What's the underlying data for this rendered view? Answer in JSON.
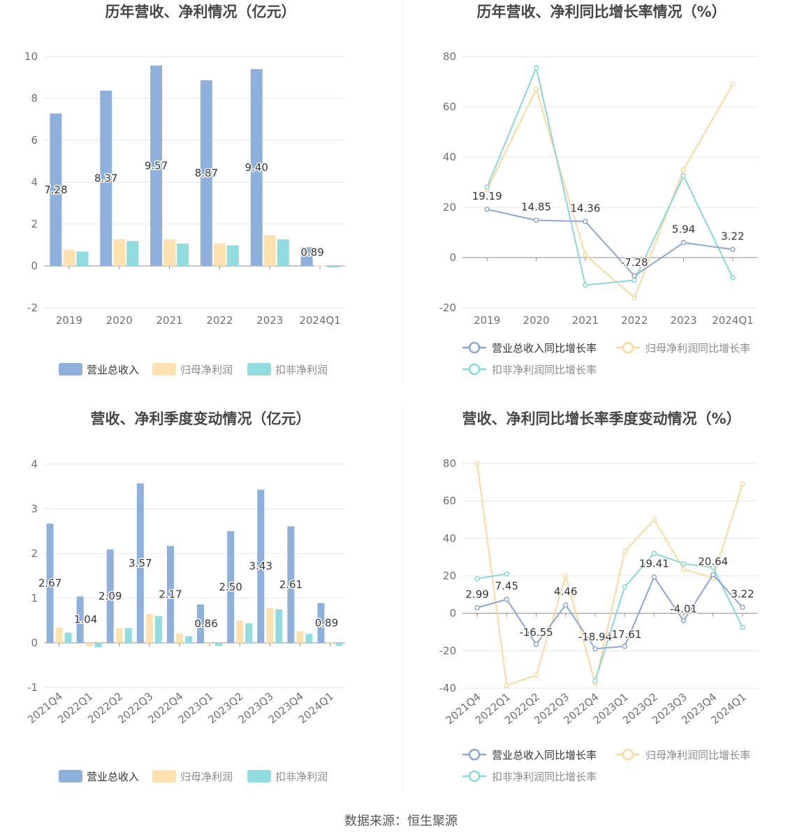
{
  "colors": {
    "revenue": "#8eb0dd",
    "net_profit": "#fde2b0",
    "deducted_profit": "#90dcdf",
    "revenue_line": "#8ba6d6",
    "net_line": "#fcd99b",
    "deducted_line": "#86d8d9",
    "grid": "#e6e6e6",
    "axis": "#8f8f8f"
  },
  "source": "数据来源：恒生聚源",
  "chart_data": [
    {
      "id": "c1",
      "type": "bar",
      "title": "历年营收、净利情况（亿元）",
      "categories": [
        "2019",
        "2020",
        "2021",
        "2022",
        "2023",
        "2024Q1"
      ],
      "ylim": [
        -2,
        10
      ],
      "yticks": [
        -2,
        0,
        2,
        4,
        6,
        8,
        10
      ],
      "grid": true,
      "legend": "bottom",
      "series": [
        {
          "name": "营业总收入",
          "key": "revenue",
          "values": [
            7.28,
            8.37,
            9.57,
            8.87,
            9.4,
            0.89
          ],
          "labels": [
            "7.28",
            "8.37",
            "9.57",
            "8.87",
            "9.40",
            "0.89"
          ]
        },
        {
          "name": "归母净利润",
          "key": "net_profit",
          "values": [
            0.77,
            1.27,
            1.27,
            1.08,
            1.47,
            0.02
          ]
        },
        {
          "name": "扣非净利润",
          "key": "deducted_profit",
          "values": [
            0.69,
            1.19,
            1.07,
            0.98,
            1.27,
            -0.07
          ]
        }
      ]
    },
    {
      "id": "c2",
      "type": "line",
      "title": "历年营收、净利同比增长率情况（%）",
      "categories": [
        "2019",
        "2020",
        "2021",
        "2022",
        "2023",
        "2024Q1"
      ],
      "ylim": [
        -20,
        80
      ],
      "yticks": [
        -20,
        0,
        20,
        40,
        60,
        80
      ],
      "grid": true,
      "legend": "bottom",
      "series": [
        {
          "name": "营业总收入同比增长率",
          "key": "revenue_line",
          "values": [
            19.19,
            14.85,
            14.36,
            -7.28,
            5.94,
            3.22
          ],
          "labels": [
            "19.19",
            "14.85",
            "14.36",
            "-7.28",
            "5.94",
            "3.22"
          ]
        },
        {
          "name": "归母净利润同比增长率",
          "key": "net_line",
          "values": [
            27,
            67,
            1,
            -16,
            35,
            69
          ]
        },
        {
          "name": "扣非净利润同比增长率",
          "key": "deducted_line",
          "values": [
            28,
            75.5,
            -11,
            -9,
            32.5,
            -8
          ]
        }
      ]
    },
    {
      "id": "c3",
      "type": "bar",
      "title": "营收、净利季度变动情况（亿元）",
      "categories": [
        "2021Q4",
        "2022Q1",
        "2022Q2",
        "2022Q3",
        "2022Q4",
        "2023Q1",
        "2023Q2",
        "2023Q3",
        "2023Q4",
        "2024Q1"
      ],
      "ylim": [
        -1,
        4
      ],
      "yticks": [
        -1,
        0,
        1,
        2,
        3,
        4
      ],
      "grid": true,
      "legend": "bottom",
      "series": [
        {
          "name": "营业总收入",
          "key": "revenue",
          "values": [
            2.67,
            1.04,
            2.09,
            3.57,
            2.17,
            0.86,
            2.5,
            3.43,
            2.61,
            0.89
          ],
          "labels": [
            "2.67",
            "1.04",
            "2.09",
            "3.57",
            "2.17",
            "0.86",
            "2.50",
            "3.43",
            "2.61",
            "0.89"
          ]
        },
        {
          "name": "归母净利润",
          "key": "net_profit",
          "values": [
            0.35,
            -0.07,
            0.33,
            0.64,
            0.21,
            -0.04,
            0.5,
            0.78,
            0.26,
            0.02
          ]
        },
        {
          "name": "扣非净利润",
          "key": "deducted_profit",
          "values": [
            0.23,
            -0.1,
            0.33,
            0.6,
            0.15,
            -0.07,
            0.44,
            0.75,
            0.2,
            -0.07
          ]
        }
      ]
    },
    {
      "id": "c4",
      "type": "line",
      "title": "营收、净利同比增长率季度变动情况（%）",
      "categories": [
        "2021Q4",
        "2022Q1",
        "2022Q2",
        "2022Q3",
        "2022Q4",
        "2023Q1",
        "2023Q2",
        "2023Q3",
        "2023Q4",
        "2024Q1"
      ],
      "ylim": [
        -40,
        80
      ],
      "yticks": [
        -40,
        -20,
        0,
        20,
        40,
        60,
        80
      ],
      "grid": true,
      "legend": "bottom",
      "series": [
        {
          "name": "营业总收入同比增长率",
          "key": "revenue_line",
          "values": [
            2.99,
            7.45,
            -16.55,
            4.46,
            -18.94,
            -17.61,
            19.41,
            -4.01,
            20.64,
            3.22
          ],
          "labels": [
            "2.99",
            "7.45",
            "-16.55",
            "4.46",
            "-18.94",
            "-17.61",
            "19.41",
            "-4.01",
            "20.64",
            "3.22"
          ]
        },
        {
          "name": "归母净利润同比增长率",
          "key": "net_line",
          "values": [
            80,
            -38.5,
            -33,
            20,
            -37.5,
            33,
            50,
            23.5,
            19,
            69
          ]
        },
        {
          "name": "扣非净利润同比增长率",
          "key": "deducted_line",
          "values": [
            18.5,
            21,
            null,
            null,
            -36,
            14,
            32,
            26.5,
            24.5,
            -7.5
          ]
        }
      ]
    }
  ]
}
